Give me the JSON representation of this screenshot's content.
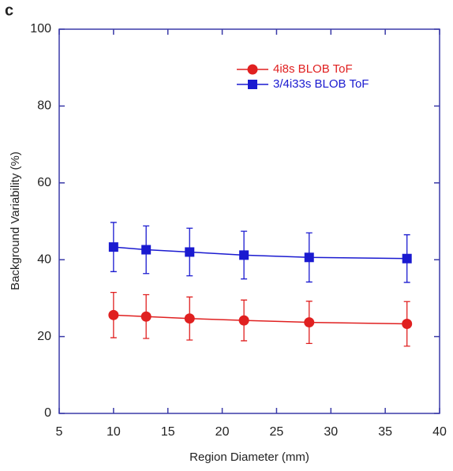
{
  "panel_label": "c",
  "chart_data": {
    "type": "line",
    "x_label": "Region Diameter (mm)",
    "y_label": "Background Variability (%)",
    "x": [
      10,
      13,
      17,
      22,
      28,
      37
    ],
    "series": [
      {
        "name": "4i8s BLOB ToF",
        "color": "#e02020",
        "marker": "circle",
        "values": [
          25.6,
          25.2,
          24.7,
          24.2,
          23.7,
          23.3
        ],
        "errors": [
          5.9,
          5.7,
          5.6,
          5.3,
          5.5,
          5.8
        ]
      },
      {
        "name": "3/4i33s BLOB ToF",
        "color": "#1a1ad0",
        "marker": "square",
        "values": [
          43.3,
          42.6,
          42.0,
          41.2,
          40.6,
          40.3
        ],
        "errors": [
          6.4,
          6.2,
          6.2,
          6.2,
          6.4,
          6.2
        ]
      }
    ],
    "xlim": [
      5,
      40
    ],
    "xticks": [
      5,
      10,
      15,
      20,
      25,
      30,
      35,
      40
    ],
    "ylim": [
      0,
      100
    ],
    "yticks": [
      0,
      20,
      40,
      60,
      80,
      100
    ],
    "axis_color": "#3a3aa8",
    "legend": "upper right"
  }
}
